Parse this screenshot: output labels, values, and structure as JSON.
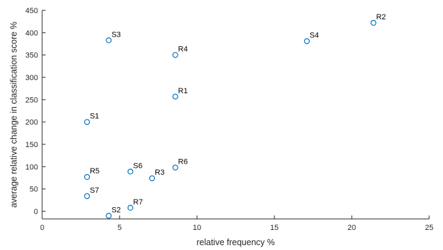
{
  "chart_data": {
    "type": "scatter",
    "title": "",
    "xlabel": "relative frequency %",
    "ylabel": "average relative change in classification score %",
    "xlim": [
      0,
      25
    ],
    "ylim": [
      -17,
      450
    ],
    "xticks": [
      0,
      5,
      10,
      15,
      20,
      25
    ],
    "yticks": [
      0,
      50,
      100,
      150,
      200,
      250,
      300,
      350,
      400,
      450
    ],
    "marker_color": "#0072BD",
    "grid": false,
    "points": [
      {
        "label": "R2",
        "x": 21.4,
        "y": 422
      },
      {
        "label": "S3",
        "x": 4.3,
        "y": 383
      },
      {
        "label": "S4",
        "x": 17.1,
        "y": 381
      },
      {
        "label": "R4",
        "x": 8.6,
        "y": 350
      },
      {
        "label": "R1",
        "x": 8.6,
        "y": 257
      },
      {
        "label": "S1",
        "x": 2.9,
        "y": 200
      },
      {
        "label": "R6",
        "x": 8.6,
        "y": 98
      },
      {
        "label": "S6",
        "x": 5.7,
        "y": 89
      },
      {
        "label": "R5",
        "x": 2.9,
        "y": 77
      },
      {
        "label": "R3",
        "x": 7.1,
        "y": 74
      },
      {
        "label": "S7",
        "x": 2.9,
        "y": 34
      },
      {
        "label": "R7",
        "x": 5.7,
        "y": 8
      },
      {
        "label": "S2",
        "x": 4.3,
        "y": -10
      }
    ]
  }
}
